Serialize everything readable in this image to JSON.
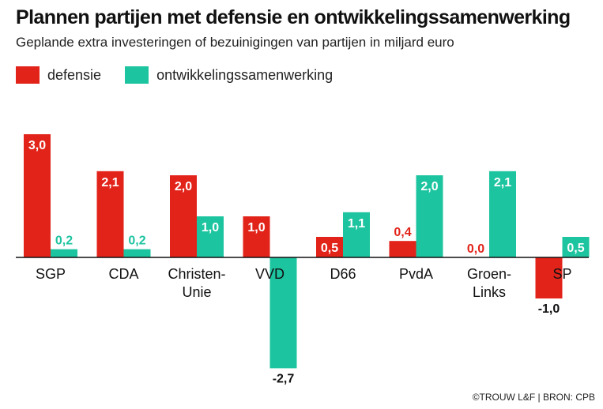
{
  "header": {
    "title": "Plannen partijen met defensie en ontwikkelingssamenwerking",
    "subtitle": "Geplande extra investeringen of bezuinigingen van partijen in miljard euro"
  },
  "legend": [
    {
      "label": "defensie",
      "color": "#e2231a"
    },
    {
      "label": "ontwikkelingssamenwerking",
      "color": "#1dc4a0"
    }
  ],
  "source": "©TROUW L&F | BRON: CPB",
  "chart_data": {
    "type": "bar",
    "categories": [
      [
        "SGP"
      ],
      [
        "CDA"
      ],
      [
        "Christen-",
        "Unie"
      ],
      [
        "VVD"
      ],
      [
        "D66"
      ],
      [
        "PvdA"
      ],
      [
        "Groen-",
        "Links"
      ],
      [
        "SP"
      ]
    ],
    "series": [
      {
        "name": "defensie",
        "color": "#e2231a",
        "values": [
          3.0,
          2.1,
          2.0,
          1.0,
          0.5,
          0.4,
          0.0,
          -1.0
        ],
        "labels": [
          "3,0",
          "2,1",
          "2,0",
          "1,0",
          "0,5",
          "0,4",
          "0,0",
          "-1,0"
        ]
      },
      {
        "name": "ontwikkelingssamenwerking",
        "color": "#1dc4a0",
        "values": [
          0.2,
          0.2,
          1.0,
          -2.7,
          1.1,
          2.0,
          2.1,
          0.5
        ],
        "labels": [
          "0,2",
          "0,2",
          "1,0",
          "-2,7",
          "1,1",
          "2,0",
          "2,1",
          "0,5"
        ]
      }
    ],
    "ylim": [
      -2.7,
      3.0
    ],
    "grid": false,
    "legend_position": "top-left"
  }
}
